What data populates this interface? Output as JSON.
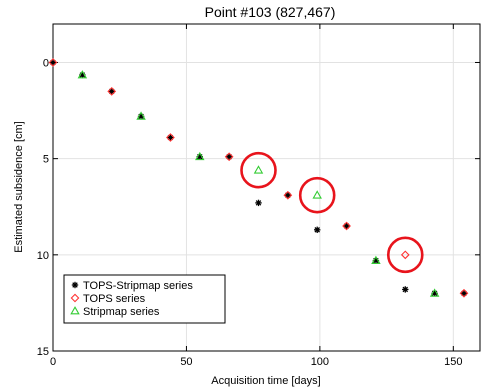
{
  "chart_data": {
    "type": "scatter",
    "title": "Point #103 (827,467)",
    "xlabel": "Acquisition time [days]",
    "ylabel": "Estimated subsidence [cm]",
    "xlim": [
      0,
      160
    ],
    "ylim": [
      15,
      -2
    ],
    "y_inverted": true,
    "xticks": [
      0,
      50,
      100,
      150
    ],
    "yticks": [
      0,
      5,
      10,
      15
    ],
    "grid": true,
    "legend_position": "bottom-left",
    "series": [
      {
        "name": "TOPS-Stripmap series",
        "marker": "asterisk",
        "color": "#000000",
        "points": [
          {
            "x": 0,
            "y": 0.0
          },
          {
            "x": 11,
            "y": 0.65
          },
          {
            "x": 22,
            "y": 1.5
          },
          {
            "x": 33,
            "y": 2.8
          },
          {
            "x": 44,
            "y": 3.9
          },
          {
            "x": 55,
            "y": 4.9
          },
          {
            "x": 66,
            "y": 4.9
          },
          {
            "x": 77,
            "y": 7.3
          },
          {
            "x": 88,
            "y": 6.9
          },
          {
            "x": 99,
            "y": 8.7
          },
          {
            "x": 110,
            "y": 8.5
          },
          {
            "x": 121,
            "y": 10.3
          },
          {
            "x": 132,
            "y": 11.8
          },
          {
            "x": 143,
            "y": 12.0
          },
          {
            "x": 154,
            "y": 12.0
          }
        ]
      },
      {
        "name": "TOPS series",
        "marker": "diamond",
        "color": "#ff3333",
        "points": [
          {
            "x": 0,
            "y": 0.0
          },
          {
            "x": 22,
            "y": 1.5
          },
          {
            "x": 44,
            "y": 3.9
          },
          {
            "x": 66,
            "y": 4.9
          },
          {
            "x": 88,
            "y": 6.9
          },
          {
            "x": 110,
            "y": 8.5
          },
          {
            "x": 132,
            "y": 10.0
          },
          {
            "x": 154,
            "y": 12.0
          }
        ]
      },
      {
        "name": "Stripmap series",
        "marker": "triangle",
        "color": "#33cc33",
        "points": [
          {
            "x": 11,
            "y": 0.65
          },
          {
            "x": 33,
            "y": 2.8
          },
          {
            "x": 55,
            "y": 4.9
          },
          {
            "x": 77,
            "y": 5.6
          },
          {
            "x": 99,
            "y": 6.9
          },
          {
            "x": 121,
            "y": 10.3
          },
          {
            "x": 143,
            "y": 12.0
          }
        ]
      }
    ],
    "highlights": [
      {
        "x": 77,
        "y": 5.6,
        "color": "#e8141c"
      },
      {
        "x": 99,
        "y": 6.9,
        "color": "#e8141c"
      },
      {
        "x": 132,
        "y": 10.0,
        "color": "#e8141c"
      }
    ]
  }
}
